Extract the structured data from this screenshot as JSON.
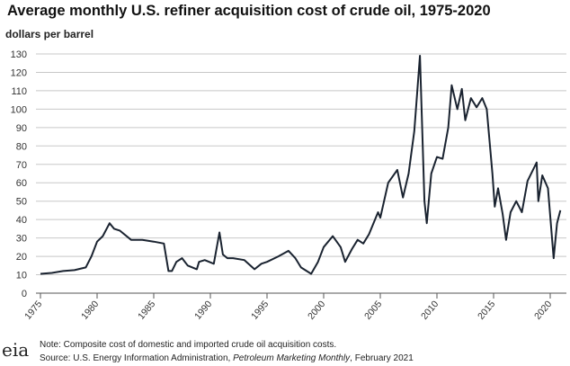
{
  "chart_data": {
    "type": "line",
    "title": "Average monthly U.S. refiner acquisition cost of crude oil, 1975-2020",
    "ylabel": "dollars per barrel",
    "xlabel": "",
    "ylim": [
      0,
      130
    ],
    "xlim": [
      1975,
      2021
    ],
    "yticks": [
      "0",
      "10",
      "20",
      "30",
      "40",
      "50",
      "60",
      "70",
      "80",
      "90",
      "100",
      "110",
      "120",
      "130"
    ],
    "xticks": [
      "1975",
      "1980",
      "1985",
      "1990",
      "1995",
      "2000",
      "2005",
      "2010",
      "2015",
      "2020"
    ],
    "grid": "horizontal",
    "series": [
      {
        "name": "Refiner acquisition cost",
        "color": "#1a2330",
        "x": [
          1975,
          1976,
          1977,
          1978,
          1979,
          1979.5,
          1980,
          1980.5,
          1981.1,
          1981.5,
          1982,
          1983,
          1984,
          1985,
          1985.9,
          1986.3,
          1986.6,
          1987,
          1987.5,
          1988,
          1988.8,
          1989,
          1989.5,
          1990.3,
          1990.8,
          1991.1,
          1991.5,
          1992,
          1993,
          1993.9,
          1994.5,
          1995,
          1996,
          1996.9,
          1997.5,
          1998,
          1998.9,
          1999.5,
          2000,
          2000.8,
          2001.5,
          2001.9,
          2002.5,
          2003,
          2003.5,
          2004,
          2004.8,
          2005,
          2005.7,
          2006.5,
          2007,
          2007.5,
          2008,
          2008.5,
          2008.9,
          2009.1,
          2009.5,
          2010,
          2010.5,
          2011,
          2011.3,
          2011.8,
          2012.2,
          2012.5,
          2013,
          2013.5,
          2014,
          2014.4,
          2014.9,
          2015.1,
          2015.4,
          2015.8,
          2016.1,
          2016.5,
          2017,
          2017.5,
          2018,
          2018.8,
          2018.95,
          2019.3,
          2019.8,
          2020.3,
          2020.6,
          2020.9
        ],
        "values": [
          10.5,
          11,
          12,
          12.5,
          14,
          20,
          28,
          31,
          38,
          35,
          34,
          29,
          29,
          28,
          27,
          12,
          12,
          17,
          19,
          15,
          13,
          17,
          18,
          16,
          33,
          21,
          19,
          19,
          18,
          13,
          16,
          17,
          20,
          23,
          19,
          14,
          10.5,
          17,
          25,
          31,
          25,
          17,
          24,
          29,
          27,
          32,
          44,
          41,
          60,
          67,
          52,
          65,
          88,
          129,
          50,
          38,
          65,
          74,
          73,
          90,
          113,
          100,
          111,
          94,
          106,
          101,
          106,
          100,
          65,
          47,
          57,
          43,
          29,
          44,
          50,
          44,
          61,
          71,
          50,
          64,
          57,
          19,
          38,
          45
        ]
      }
    ]
  },
  "footer": {
    "note": "Note: Composite cost of domestic and imported crude oil acquisition costs.",
    "source_prefix": "Source: U.S. Energy Information Administration, ",
    "source_italic": "Petroleum Marketing Monthly",
    "source_suffix": ", February 2021",
    "logo_text": "eia"
  }
}
